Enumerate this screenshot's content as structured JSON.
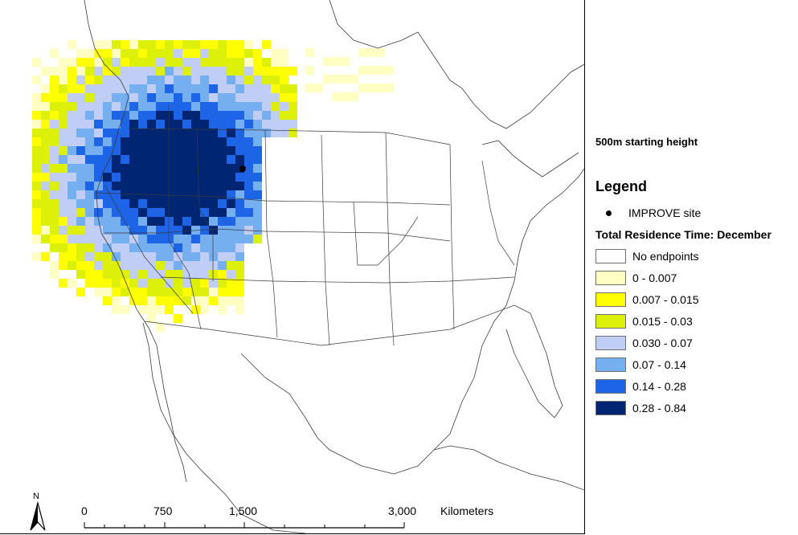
{
  "map": {
    "site_marker": "IMPROVE site location",
    "north_arrow": "N",
    "scale_bar": {
      "ticks": [
        "0",
        "750",
        "1,500",
        "3,000"
      ],
      "unit": "Kilometers"
    }
  },
  "panel": {
    "subtitle": "500m starting height",
    "legend_title": "Legend",
    "site_label": "IMPROVE site",
    "classes_title": "Total Residence Time: December",
    "classes": [
      {
        "label": "No endpoints",
        "color": "#ffffff"
      },
      {
        "label": "0 - 0.007",
        "color": "#ffffc4"
      },
      {
        "label": "0.007 - 0.015",
        "color": "#ffff00"
      },
      {
        "label": "0.015 - 0.03",
        "color": "#dcf00a"
      },
      {
        "label": "0.030 - 0.07",
        "color": "#c0cdf5"
      },
      {
        "label": "0.07 - 0.14",
        "color": "#75aff0"
      },
      {
        "label": "0.14 - 0.28",
        "color": "#1e64e6"
      },
      {
        "label": "0.28 - 0.84",
        "color": "#002673"
      }
    ]
  }
}
